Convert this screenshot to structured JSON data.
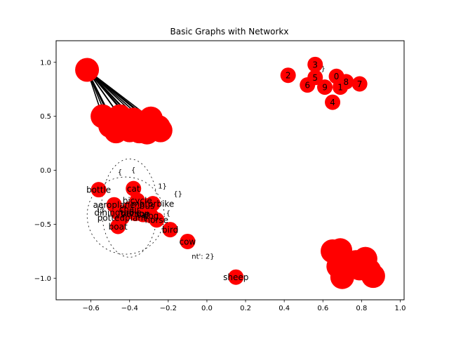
{
  "chart_data": {
    "type": "scatter",
    "title": "Basic Graphs with Networkx",
    "xlim": [
      -0.78,
      1.02
    ],
    "ylim": [
      -1.2,
      1.2
    ],
    "xticks": [
      -0.6,
      -0.4,
      -0.2,
      0.0,
      0.2,
      0.4,
      0.6,
      0.8,
      1.0
    ],
    "xtick_labels": [
      "−0.6",
      "−0.4",
      "−0.2",
      "0.0",
      "0.2",
      "0.4",
      "0.6",
      "0.8",
      "1.0"
    ],
    "yticks": [
      -1.0,
      -0.5,
      0.0,
      0.5,
      1.0
    ],
    "ytick_labels": [
      "−1.0",
      "−0.5",
      "0.0",
      "0.5",
      "1.0"
    ],
    "grid": false,
    "node_color": "#ff0000",
    "edge_color": "#000000",
    "numbered_nodes": [
      {
        "label": "0",
        "x": 0.67,
        "y": 0.87
      },
      {
        "label": "1",
        "x": 0.69,
        "y": 0.77
      },
      {
        "label": "2",
        "x": 0.42,
        "y": 0.88
      },
      {
        "label": "3",
        "x": 0.56,
        "y": 0.98
      },
      {
        "label": "4",
        "x": 0.65,
        "y": 0.63
      },
      {
        "label": "5",
        "x": 0.56,
        "y": 0.86
      },
      {
        "label": "6",
        "x": 0.52,
        "y": 0.79
      },
      {
        "label": "7",
        "x": 0.79,
        "y": 0.8
      },
      {
        "label": "8",
        "x": 0.72,
        "y": 0.82
      },
      {
        "label": "9",
        "x": 0.61,
        "y": 0.77
      }
    ],
    "numbered_edge_label_fragment": "{}",
    "named_nodes": [
      {
        "label": "bottle",
        "x": -0.56,
        "y": -0.18
      },
      {
        "label": "cat",
        "x": -0.38,
        "y": -0.17
      },
      {
        "label": "aeroplane",
        "x": -0.48,
        "y": -0.32
      },
      {
        "label": "bicycle",
        "x": -0.36,
        "y": -0.28
      },
      {
        "label": "motorbike",
        "x": -0.28,
        "y": -0.31
      },
      {
        "label": "bus",
        "x": -0.31,
        "y": -0.33
      },
      {
        "label": "chair",
        "x": -0.4,
        "y": -0.36
      },
      {
        "label": "diningtable",
        "x": -0.46,
        "y": -0.39
      },
      {
        "label": "person",
        "x": -0.37,
        "y": -0.4
      },
      {
        "label": "pottedplant",
        "x": -0.44,
        "y": -0.44
      },
      {
        "label": "car",
        "x": -0.33,
        "y": -0.41
      },
      {
        "label": "dog",
        "x": -0.29,
        "y": -0.42
      },
      {
        "label": "horse",
        "x": -0.26,
        "y": -0.46
      },
      {
        "label": "boat",
        "x": -0.46,
        "y": -0.52
      },
      {
        "label": "bird",
        "x": -0.19,
        "y": -0.55
      },
      {
        "label": "cow",
        "x": -0.1,
        "y": -0.66
      },
      {
        "label": "sheep",
        "x": 0.15,
        "y": -0.99
      }
    ],
    "named_edge_label_fragments": [
      {
        "text": "{",
        "x": -0.45,
        "y": -0.02
      },
      {
        "text": "{",
        "x": -0.38,
        "y": 0.0
      },
      {
        "text": "1}",
        "x": -0.23,
        "y": -0.15
      },
      {
        "text": "{}",
        "x": -0.15,
        "y": -0.22
      },
      {
        "text": "{}",
        "x": -0.55,
        "y": -0.36
      },
      {
        "text": "{",
        "x": -0.2,
        "y": -0.4
      },
      {
        "text": "nt': 2}",
        "x": -0.02,
        "y": -0.8
      }
    ],
    "cluster_top_left": [
      {
        "x": -0.62,
        "y": 0.93
      },
      {
        "x": -0.54,
        "y": 0.5
      },
      {
        "x": -0.49,
        "y": 0.47
      },
      {
        "x": -0.45,
        "y": 0.5
      },
      {
        "x": -0.5,
        "y": 0.41
      },
      {
        "x": -0.47,
        "y": 0.36
      },
      {
        "x": -0.42,
        "y": 0.42
      },
      {
        "x": -0.4,
        "y": 0.37
      },
      {
        "x": -0.37,
        "y": 0.42
      },
      {
        "x": -0.35,
        "y": 0.36
      },
      {
        "x": -0.33,
        "y": 0.44
      },
      {
        "x": -0.31,
        "y": 0.35
      },
      {
        "x": -0.29,
        "y": 0.41
      },
      {
        "x": -0.29,
        "y": 0.48
      },
      {
        "x": -0.25,
        "y": 0.4
      },
      {
        "x": -0.24,
        "y": 0.37
      },
      {
        "x": -0.38,
        "y": 0.47
      }
    ],
    "cluster_top_left_edges_from": 0,
    "cluster_bottom_right": [
      {
        "x": 0.65,
        "y": -0.75
      },
      {
        "x": 0.69,
        "y": -0.74
      },
      {
        "x": 0.68,
        "y": -0.89
      },
      {
        "x": 0.7,
        "y": -0.99
      },
      {
        "x": 0.74,
        "y": -0.88
      },
      {
        "x": 0.79,
        "y": -0.91
      },
      {
        "x": 0.82,
        "y": -0.82
      },
      {
        "x": 0.84,
        "y": -0.93
      },
      {
        "x": 0.86,
        "y": -0.98
      },
      {
        "x": 0.77,
        "y": -0.85
      }
    ]
  }
}
